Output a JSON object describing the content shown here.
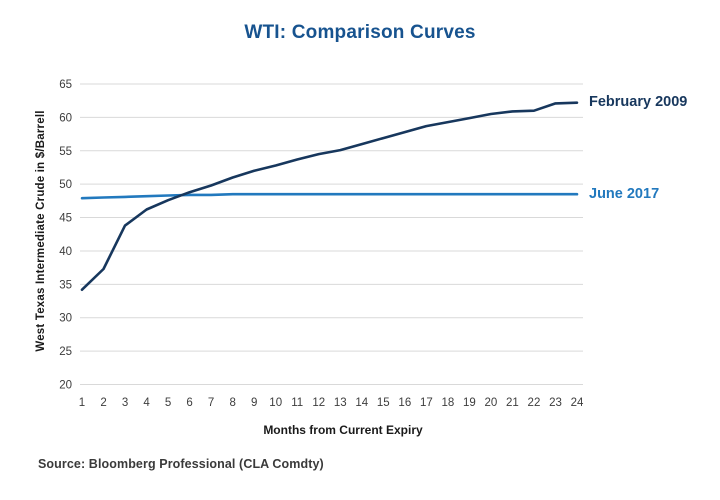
{
  "chart": {
    "title": "WTI: Comparison Curves",
    "title_color": "#17538F",
    "y_axis_title": "West Texas Intermediate Crude in $/Barrell",
    "x_axis_title": "Months from Current Expiry",
    "source": "Source: Bloomberg Professional (CLA Comdty)"
  },
  "chart_data": {
    "type": "line",
    "title": "WTI: Comparison Curves",
    "xlabel": "Months from Current Expiry",
    "ylabel": "West Texas Intermediate Crude in $/Barrell",
    "x": [
      1,
      2,
      3,
      4,
      5,
      6,
      7,
      8,
      9,
      10,
      11,
      12,
      13,
      14,
      15,
      16,
      17,
      18,
      19,
      20,
      21,
      22,
      23,
      24
    ],
    "y_ticks": [
      20,
      25,
      30,
      35,
      40,
      45,
      50,
      55,
      60,
      65
    ],
    "ylim": [
      20,
      65
    ],
    "grid": "horizontal",
    "gridline_color": "#d9d9d9",
    "tick_label_color": "#3d3d3d",
    "legend_position": "right-of-line-ends",
    "series": [
      {
        "name": "June 2017",
        "color": "#2279BE",
        "values": [
          47.9,
          48.0,
          48.1,
          48.2,
          48.3,
          48.4,
          48.4,
          48.5,
          48.5,
          48.5,
          48.5,
          48.5,
          48.5,
          48.5,
          48.5,
          48.5,
          48.5,
          48.5,
          48.5,
          48.5,
          48.5,
          48.5,
          48.5,
          48.5
        ]
      },
      {
        "name": "February 2009",
        "color": "#17375D",
        "values": [
          34.2,
          37.3,
          43.8,
          46.2,
          47.6,
          48.8,
          49.8,
          51.0,
          52.0,
          52.8,
          53.7,
          54.5,
          55.1,
          56.0,
          56.9,
          57.8,
          58.7,
          59.3,
          59.9,
          60.5,
          60.9,
          61.0,
          62.1,
          62.2
        ]
      }
    ]
  }
}
